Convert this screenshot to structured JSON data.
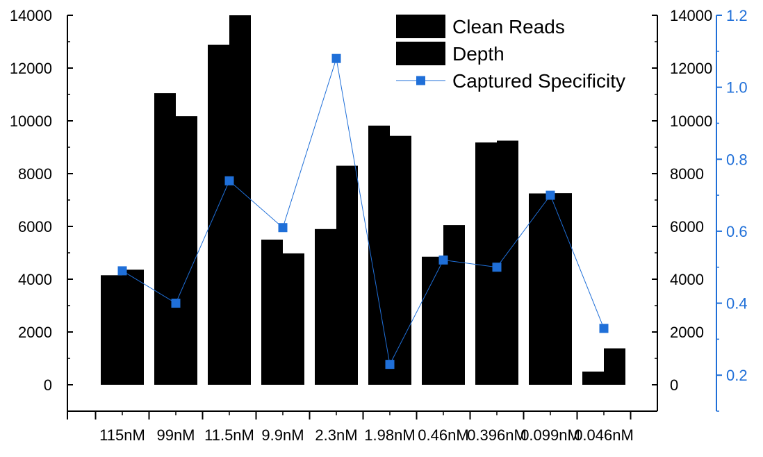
{
  "chart_data": {
    "type": "bar",
    "categories": [
      "115nM",
      "99nM",
      "11.5nM",
      "9.9nM",
      "2.3nM",
      "1.98nM",
      "0.46nM",
      "0.396nM",
      "0.099nM",
      "0.046nM"
    ],
    "series": [
      {
        "name": "Clean Reads",
        "type": "bar",
        "axis": "left",
        "color": "#000000",
        "values": [
          4150,
          11050,
          12880,
          5500,
          5900,
          9820,
          4850,
          9180,
          7250,
          500
        ]
      },
      {
        "name": "Depth",
        "type": "bar",
        "axis": "left",
        "color": "#000000",
        "values": [
          4360,
          10180,
          14000,
          4980,
          8300,
          9430,
          6050,
          9250,
          7260,
          1380
        ]
      },
      {
        "name": "Captured Specificity",
        "type": "line",
        "axis": "right",
        "color": "#1f6fd8",
        "values": [
          0.49,
          0.4,
          0.74,
          0.61,
          1.08,
          0.23,
          0.52,
          0.5,
          0.7,
          0.33
        ]
      }
    ],
    "yleft": {
      "ylim": [
        -1000,
        14000
      ],
      "ticks": [
        0,
        2000,
        4000,
        6000,
        8000,
        10000,
        12000,
        14000
      ]
    },
    "yright_inner": {
      "ylim": [
        -1000,
        14000
      ],
      "ticks": [
        0,
        2000,
        4000,
        6000,
        8000,
        10000,
        12000,
        14000
      ]
    },
    "yright_outer": {
      "ylim": [
        0.1,
        1.2
      ],
      "ticks": [
        0.2,
        0.4,
        0.6,
        0.8,
        1.0,
        1.2
      ]
    },
    "legend": "top-right",
    "grid": false,
    "title": "",
    "xlabel": "",
    "ylabel": ""
  }
}
